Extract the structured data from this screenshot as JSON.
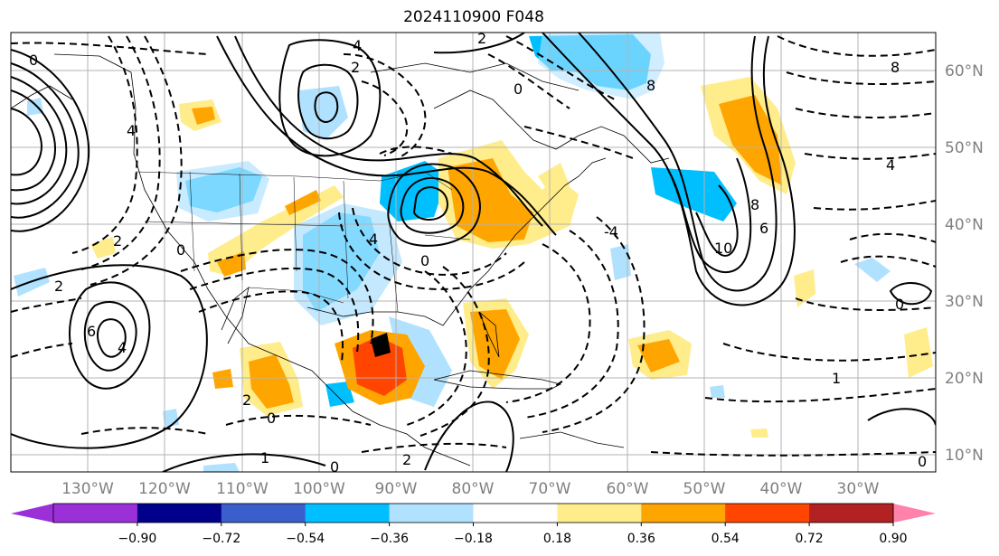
{
  "title": "2024110900 F048",
  "longitude_labels": [
    "130°W",
    "120°W",
    "110°W",
    "100°W",
    "90°W",
    "80°W",
    "70°W",
    "60°W",
    "50°W",
    "40°W",
    "30°W"
  ],
  "latitude_labels": [
    "60°N",
    "50°N",
    "40°N",
    "30°N",
    "20°N",
    "10°N"
  ],
  "colorbar": {
    "tick_labels": [
      "−0.90",
      "−0.72",
      "−0.54",
      "−0.36",
      "−0.18",
      "0.18",
      "0.36",
      "0.54",
      "0.72",
      "0.90"
    ],
    "colors": {
      "under": "#9b30d9",
      "bins": [
        "#9b30d9",
        "#00008b",
        "#3a5fcd",
        "#00bfff",
        "#b0e2ff",
        "#ffffff",
        "#ffec8b",
        "#ffa500",
        "#ff4500",
        "#b22222"
      ],
      "over": "#ff82ab"
    }
  },
  "contour_labels": [
    "0",
    "2",
    "4",
    "6",
    "8",
    "10",
    "1",
    "-2",
    "-4"
  ],
  "colors": {
    "grid": "#b3b3b3",
    "tick_label": "#808080",
    "contour": "#000000"
  }
}
